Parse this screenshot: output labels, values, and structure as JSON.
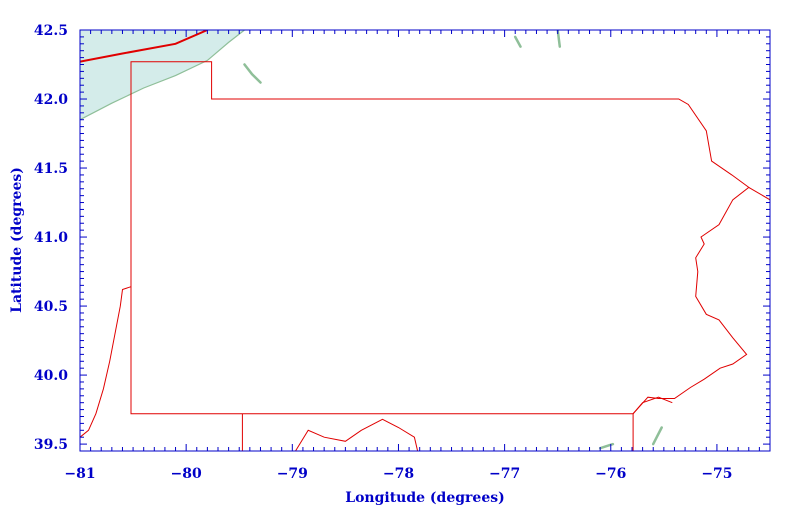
{
  "map": {
    "xaxis": {
      "title": "Longitude (degrees)",
      "range": [
        -81.0,
        -74.5
      ],
      "ticks": [
        -81,
        -80,
        -79,
        -78,
        -77,
        -76,
        -75
      ],
      "tick_labels": [
        "−81",
        "−80",
        "−79",
        "−78",
        "−77",
        "−76",
        "−75"
      ]
    },
    "yaxis": {
      "title": "Latitude (degrees)",
      "range": [
        39.45,
        42.5
      ],
      "ticks": [
        39.5,
        40.0,
        40.5,
        41.0,
        41.5,
        42.0,
        42.5
      ],
      "tick_labels": [
        "39.5",
        "40.0",
        "40.5",
        "41.0",
        "41.5",
        "42.0",
        "42.5"
      ]
    },
    "colors": {
      "axis": "#0000c8",
      "boundary": "#e00000",
      "water": "#d4ecea",
      "shore": "#8fbf99"
    },
    "lake": {
      "name": "",
      "shore_points": [
        [
          -81.0,
          41.85
        ],
        [
          -80.7,
          41.97
        ],
        [
          -80.4,
          42.08
        ],
        [
          -80.1,
          42.17
        ],
        [
          -79.8,
          42.28
        ],
        [
          -79.6,
          42.41
        ],
        [
          -79.45,
          42.5
        ]
      ]
    },
    "state_outline": {
      "points": [
        [
          -80.52,
          42.0
        ],
        [
          -80.52,
          42.27
        ],
        [
          -79.76,
          42.27
        ],
        [
          -79.76,
          42.0
        ],
        [
          -75.36,
          42.0
        ],
        [
          -75.27,
          41.96
        ],
        [
          -75.1,
          41.77
        ],
        [
          -75.05,
          41.55
        ],
        [
          -74.86,
          41.45
        ],
        [
          -74.7,
          41.36
        ],
        [
          -74.85,
          41.27
        ],
        [
          -74.98,
          41.09
        ],
        [
          -75.15,
          41.0
        ],
        [
          -75.12,
          40.95
        ],
        [
          -75.2,
          40.85
        ],
        [
          -75.18,
          40.75
        ],
        [
          -75.2,
          40.57
        ],
        [
          -75.1,
          40.44
        ],
        [
          -74.98,
          40.4
        ],
        [
          -74.85,
          40.27
        ],
        [
          -74.72,
          40.15
        ],
        [
          -74.85,
          40.08
        ],
        [
          -74.97,
          40.05
        ],
        [
          -75.12,
          39.97
        ],
        [
          -75.25,
          39.91
        ],
        [
          -75.4,
          39.83
        ],
        [
          -75.55,
          39.83
        ],
        [
          -75.65,
          39.84
        ],
        [
          -75.79,
          39.72
        ],
        [
          -76.25,
          39.72
        ],
        [
          -77.5,
          39.72
        ],
        [
          -79.47,
          39.72
        ],
        [
          -80.52,
          39.72
        ],
        [
          -80.52,
          40.64
        ],
        [
          -80.52,
          42.0
        ]
      ]
    },
    "neighbor_lines": [
      {
        "id": "ny-nj-line",
        "points": [
          [
            -74.7,
            41.36
          ],
          [
            -74.5,
            41.27
          ]
        ]
      },
      {
        "id": "md-wv-line",
        "points": [
          [
            -79.47,
            39.72
          ],
          [
            -79.47,
            39.45
          ]
        ]
      },
      {
        "id": "de-arc",
        "points": [
          [
            -75.79,
            39.72
          ],
          [
            -75.7,
            39.8
          ],
          [
            -75.55,
            39.84
          ],
          [
            -75.42,
            39.8
          ]
        ]
      },
      {
        "id": "de-west",
        "points": [
          [
            -75.79,
            39.72
          ],
          [
            -75.79,
            39.45
          ]
        ]
      },
      {
        "id": "ohio-river",
        "points": [
          [
            -80.52,
            40.64
          ],
          [
            -80.6,
            40.62
          ],
          [
            -80.62,
            40.5
          ],
          [
            -80.67,
            40.3
          ],
          [
            -80.72,
            40.1
          ],
          [
            -80.78,
            39.9
          ],
          [
            -80.85,
            39.72
          ],
          [
            -80.92,
            39.6
          ],
          [
            -81.0,
            39.55
          ]
        ]
      },
      {
        "id": "ny-lake-border",
        "points": [
          [
            -81.0,
            42.27
          ],
          [
            -80.6,
            42.33
          ],
          [
            -80.1,
            42.4
          ],
          [
            -79.8,
            42.5
          ]
        ]
      },
      {
        "id": "md-potomac",
        "points": [
          [
            -78.97,
            39.45
          ],
          [
            -78.85,
            39.6
          ],
          [
            -78.7,
            39.55
          ],
          [
            -78.5,
            39.52
          ],
          [
            -78.35,
            39.6
          ],
          [
            -78.15,
            39.68
          ],
          [
            -78.0,
            39.62
          ],
          [
            -77.85,
            39.55
          ],
          [
            -77.82,
            39.45
          ]
        ]
      }
    ],
    "inland_water": [
      {
        "id": "chautauqua-lake",
        "points": [
          [
            -79.45,
            42.25
          ],
          [
            -79.38,
            42.18
          ],
          [
            -79.3,
            42.12
          ]
        ]
      },
      {
        "id": "finger-lake-1",
        "points": [
          [
            -76.9,
            42.45
          ],
          [
            -76.85,
            42.38
          ]
        ]
      },
      {
        "id": "finger-lake-2",
        "points": [
          [
            -76.5,
            42.5
          ],
          [
            -76.48,
            42.38
          ]
        ]
      },
      {
        "id": "chesapeake-head",
        "points": [
          [
            -75.98,
            39.5
          ],
          [
            -76.1,
            39.47
          ]
        ]
      },
      {
        "id": "delaware-bay",
        "points": [
          [
            -75.6,
            39.5
          ],
          [
            -75.52,
            39.62
          ]
        ]
      }
    ]
  }
}
